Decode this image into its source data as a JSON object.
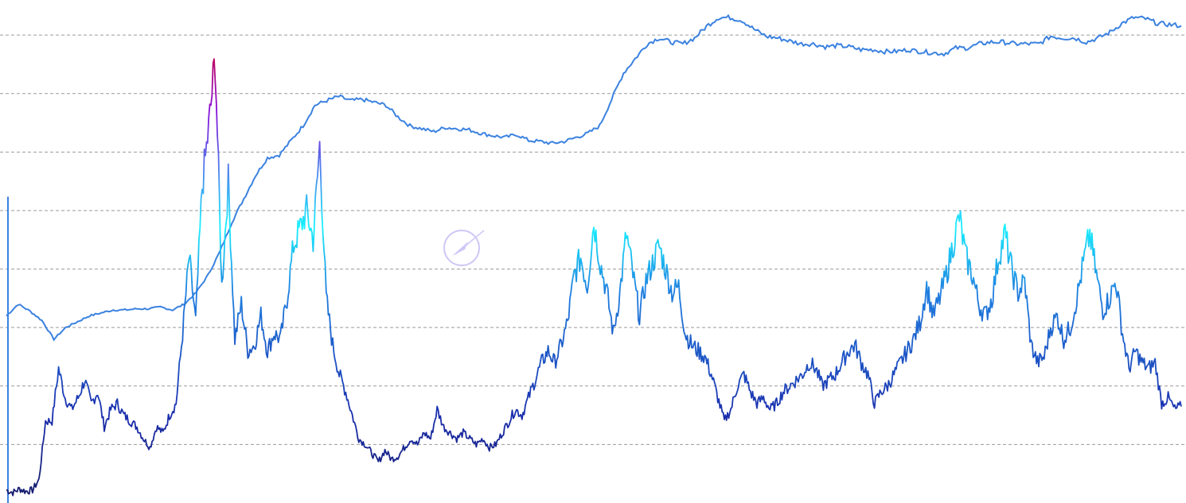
{
  "chart_data": {
    "type": "line",
    "title": "",
    "xlabel": "",
    "ylabel": "",
    "ylim": [
      0,
      8.6
    ],
    "xlim": [
      0,
      99
    ],
    "grid": true,
    "gridlines_y": [
      1,
      2,
      3,
      4,
      5,
      6,
      7,
      8
    ],
    "legend": "none",
    "series": [
      {
        "role": "reference-line",
        "color": "#3b82e0",
        "values": [
          3.2,
          3.4,
          3.28,
          3.12,
          2.8,
          3.0,
          3.1,
          3.2,
          3.25,
          3.3,
          3.3,
          3.32,
          3.32,
          3.35,
          3.3,
          3.4,
          3.6,
          3.9,
          4.3,
          4.8,
          5.2,
          5.6,
          5.9,
          5.95,
          6.2,
          6.45,
          6.8,
          6.88,
          6.95,
          6.88,
          6.9,
          6.85,
          6.8,
          6.6,
          6.45,
          6.4,
          6.35,
          6.42,
          6.4,
          6.38,
          6.32,
          6.28,
          6.25,
          6.3,
          6.2,
          6.18,
          6.15,
          6.18,
          6.25,
          6.32,
          6.45,
          6.9,
          7.35,
          7.6,
          7.85,
          7.95,
          7.88,
          7.85,
          7.95,
          8.15,
          8.3,
          8.3,
          8.25,
          8.1,
          7.98,
          7.95,
          7.9,
          7.85,
          7.85,
          7.8,
          7.82,
          7.8,
          7.75,
          7.75,
          7.72,
          7.72,
          7.75,
          7.72,
          7.7,
          7.68,
          7.78,
          7.78,
          7.85,
          7.88,
          7.88,
          7.85,
          7.85,
          7.85,
          7.98,
          7.95,
          7.95,
          7.88,
          7.95,
          8.05,
          8.2,
          8.3,
          8.28,
          8.2,
          8.18,
          8.16
        ]
      },
      {
        "role": "value",
        "color_scale": [
          "#141a66",
          "#1a2dac",
          "#1f7fe0",
          "#19f0ff",
          "#8a0fd8",
          "#e0001a"
        ],
        "values": [
          0.22,
          0.18,
          0.24,
          0.2,
          0.22,
          0.4,
          1.4,
          1.4,
          2.3,
          1.8,
          1.6,
          1.8,
          2.1,
          1.7,
          1.9,
          1.3,
          1.6,
          1.7,
          1.5,
          1.4,
          1.3,
          1.1,
          0.95,
          1.3,
          1.2,
          1.5,
          1.7,
          2.9,
          4.2,
          3.1,
          5.4,
          6.4,
          7.6,
          3.7,
          5.5,
          2.8,
          3.4,
          2.6,
          2.7,
          3.2,
          2.6,
          2.9,
          2.8,
          3.5,
          4.4,
          4.7,
          5.0,
          4.5,
          6.1,
          3.5,
          2.7,
          2.2,
          1.9,
          1.5,
          1.1,
          1.0,
          0.85,
          0.7,
          0.9,
          0.75,
          0.8,
          0.95,
          1.1,
          1.0,
          1.2,
          1.1,
          1.6,
          1.3,
          1.2,
          1.1,
          1.2,
          1.1,
          1.0,
          1.1,
          0.95,
          1.0,
          1.2,
          1.4,
          1.6,
          1.5,
          1.8,
          2.1,
          2.4,
          2.6,
          2.4,
          2.7,
          3.1,
          3.9,
          4.2,
          3.7,
          4.8,
          4.1,
          3.6,
          2.9,
          3.6,
          4.6,
          3.9,
          3.2,
          3.8,
          4.1,
          4.4,
          4.0,
          3.6,
          3.7,
          2.9,
          2.7,
          2.6,
          2.5,
          2.2,
          1.8,
          1.4,
          1.6,
          2.0,
          2.2,
          1.9,
          1.7,
          1.8,
          1.6,
          1.7,
          1.9,
          2.0,
          2.1,
          2.2,
          2.4,
          2.3,
          2.0,
          2.1,
          2.2,
          2.4,
          2.6,
          2.7,
          2.4,
          2.2,
          1.7,
          1.9,
          2.0,
          2.2,
          2.4,
          2.6,
          2.8,
          3.1,
          3.7,
          3.2,
          3.5,
          3.9,
          4.4,
          4.9,
          4.2,
          3.9,
          3.4,
          3.2,
          3.5,
          4.2,
          4.6,
          4.0,
          3.6,
          3.8,
          2.7,
          2.4,
          2.5,
          3.0,
          3.2,
          2.8,
          3.0,
          3.5,
          4.1,
          4.6,
          3.9,
          3.3,
          3.5,
          3.8,
          2.9,
          2.3,
          2.6,
          2.4,
          2.3,
          2.4,
          1.7,
          1.8,
          1.6,
          1.65
        ]
      }
    ]
  },
  "watermark": {
    "icon": "gauge-logo-icon",
    "color": "#a99cf0"
  }
}
